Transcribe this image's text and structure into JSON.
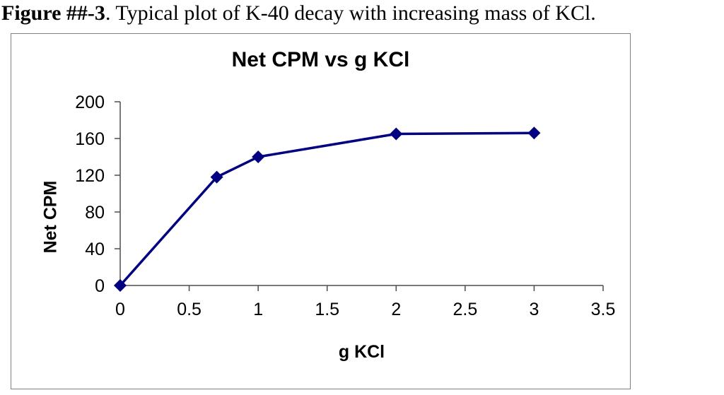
{
  "caption": {
    "figure_label": "Figure ##-3",
    "text": ". Typical plot of K-40 decay with increasing mass of KCl."
  },
  "chart_data": {
    "type": "line",
    "title": "Net CPM vs g KCl",
    "xlabel": "g KCl",
    "ylabel": "Net CPM",
    "series": [
      {
        "name": "Net CPM",
        "x": [
          0,
          0.7,
          1,
          2,
          3
        ],
        "y": [
          0,
          118,
          140,
          165,
          166
        ],
        "color": "#000080",
        "marker": "diamond"
      }
    ],
    "xlim": [
      0,
      3.5
    ],
    "ylim": [
      0,
      200
    ],
    "xticks": [
      0,
      0.5,
      1,
      1.5,
      2,
      2.5,
      3,
      3.5
    ],
    "yticks": [
      0,
      40,
      80,
      120,
      160,
      200
    ],
    "grid": false,
    "legend": false,
    "axis_color": "#4d4d4d",
    "tick_label_color": "#000000",
    "frame_border_color": "#808080",
    "background": "#ffffff"
  }
}
